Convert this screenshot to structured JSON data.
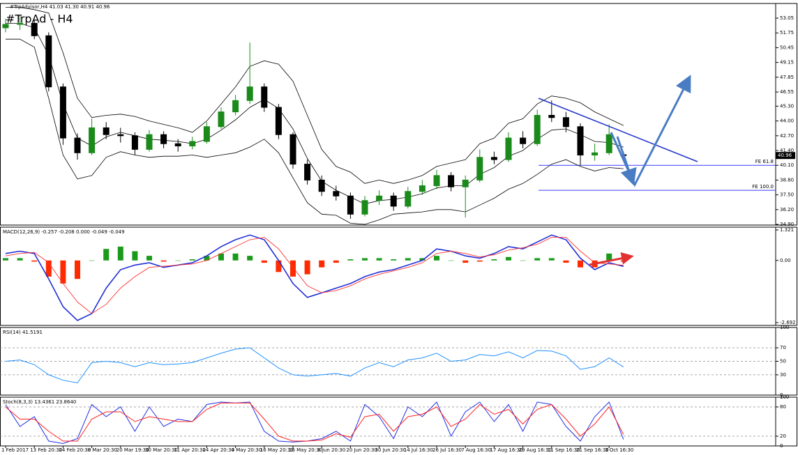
{
  "chart_data": [
    {
      "type": "candlestick",
      "header": "#TrpAdvisor,H4 41.03 41.30 40.91 40.96",
      "title": "#TrpAd - H4",
      "categories": [
        "1 Feb 2017",
        null,
        "13 Feb 20:30",
        null,
        "24 Feb 20:30",
        null,
        "8 Mar 20:30",
        null,
        "20 Mar 19:30",
        null,
        "30 Mar 20:30",
        null,
        "11 Apr 20:30",
        null,
        "24 Apr 20:30",
        null,
        "4 May 20:30",
        null,
        "16 May 20:30",
        null,
        "26 May 20:30",
        null,
        "8 Jun 20:30",
        null,
        "20 Jun 20:30",
        null,
        "30 Jun 20:30",
        null,
        "14 Jul 16:30",
        null,
        "26 Jul 16:30",
        null,
        "7 Aug 16:30",
        null,
        "17 Aug 16:30",
        null,
        "29 Aug 16:30",
        null,
        "11 Sep 16:30",
        null,
        "21 Sep 16:30",
        null,
        "3 Oct 16:30",
        null
      ],
      "open": [
        52.2,
        52.5,
        52.6,
        51.5,
        47.0,
        42.5,
        41.2,
        43.4,
        42.8,
        42.7,
        41.5,
        42.8,
        42.0,
        41.8,
        42.2,
        43.5,
        44.8,
        45.8,
        47.0,
        45.2,
        42.8,
        40.2,
        38.8,
        37.8,
        37.4,
        35.8,
        37.0,
        37.4,
        36.5,
        37.8,
        38.3,
        39.2,
        38.2,
        38.8,
        40.8,
        40.6,
        42.5,
        42.0,
        44.5,
        44.3,
        43.5,
        41.0,
        41.2,
        41.03
      ],
      "high": [
        53.0,
        53.3,
        52.9,
        51.8,
        47.3,
        42.9,
        44.2,
        43.9,
        43.4,
        43.0,
        43.2,
        43.1,
        42.4,
        42.6,
        43.9,
        45.2,
        46.3,
        50.9,
        47.3,
        45.5,
        43.0,
        40.6,
        39.2,
        38.3,
        37.7,
        37.4,
        37.9,
        37.7,
        38.2,
        38.8,
        39.7,
        39.5,
        39.2,
        41.5,
        41.3,
        43.0,
        43.1,
        45.0,
        45.8,
        44.8,
        43.8,
        42.0,
        43.7,
        41.3
      ],
      "low": [
        51.8,
        52.0,
        51.2,
        46.6,
        41.9,
        40.6,
        41.0,
        42.4,
        42.1,
        41.0,
        41.3,
        41.6,
        41.3,
        41.5,
        42.0,
        43.3,
        44.5,
        45.5,
        44.8,
        42.4,
        39.8,
        38.4,
        37.4,
        37.0,
        35.4,
        35.6,
        36.6,
        36.1,
        36.3,
        37.5,
        38.0,
        37.8,
        35.5,
        38.6,
        40.2,
        40.4,
        41.6,
        41.8,
        43.9,
        43.0,
        40.1,
        40.5,
        41.0,
        40.91
      ],
      "close": [
        52.5,
        52.6,
        51.5,
        47.0,
        42.5,
        41.2,
        43.4,
        42.8,
        42.7,
        41.5,
        42.8,
        42.0,
        41.8,
        42.2,
        43.5,
        44.8,
        45.8,
        47.0,
        45.2,
        42.8,
        40.2,
        38.8,
        37.8,
        37.4,
        35.8,
        37.0,
        37.4,
        36.5,
        37.8,
        38.3,
        39.2,
        38.2,
        38.8,
        40.8,
        40.6,
        42.5,
        42.0,
        44.5,
        44.3,
        43.5,
        41.0,
        41.2,
        42.8,
        40.96
      ],
      "up_color": "#1a8a1a",
      "down_color": "#000000",
      "bands": [
        {
          "color": "#000000",
          "values": [
            54.0,
            54.0,
            53.8,
            53.5,
            50.0,
            46.0,
            44.3,
            44.5,
            44.6,
            44.4,
            44.0,
            43.7,
            43.4,
            43.0,
            44.0,
            45.5,
            47.0,
            48.8,
            49.3,
            49.0,
            47.5,
            44.5,
            41.5,
            40.0,
            39.5,
            38.5,
            38.8,
            38.5,
            38.8,
            39.2,
            40.0,
            40.3,
            40.6,
            42.0,
            42.5,
            43.8,
            44.2,
            45.5,
            46.2,
            46.0,
            45.6,
            44.8,
            44.2,
            43.6
          ]
        },
        {
          "color": "#000000",
          "values": [
            52.6,
            52.6,
            52.2,
            49.8,
            45.5,
            42.5,
            41.8,
            42.6,
            43.0,
            42.7,
            42.4,
            42.3,
            42.2,
            42.0,
            42.4,
            43.2,
            44.1,
            45.2,
            45.9,
            45.1,
            43.3,
            40.7,
            38.7,
            37.9,
            37.3,
            36.7,
            37.0,
            37.1,
            37.3,
            37.6,
            38.1,
            38.3,
            38.3,
            39.3,
            39.9,
            40.9,
            41.4,
            42.4,
            43.2,
            43.3,
            42.8,
            42.2,
            42.1,
            41.7
          ]
        },
        {
          "color": "#000000",
          "values": [
            51.2,
            51.2,
            50.5,
            46.0,
            41.0,
            38.9,
            39.2,
            40.8,
            41.3,
            41.0,
            40.8,
            40.9,
            40.9,
            41.0,
            40.8,
            41.0,
            41.2,
            41.7,
            42.4,
            41.2,
            39.0,
            36.8,
            35.8,
            35.7,
            35.0,
            34.9,
            35.3,
            35.8,
            35.9,
            36.0,
            36.2,
            36.2,
            36.0,
            36.6,
            37.2,
            38.0,
            38.5,
            39.3,
            40.2,
            40.6,
            40.0,
            39.6,
            39.9,
            39.8
          ]
        }
      ],
      "ylim": [
        34.84,
        54.34
      ],
      "yticks": [
        53.05,
        51.75,
        50.45,
        49.15,
        47.85,
        46.55,
        {
          "value": 45.3,
          "label": "45.30"
        },
        {
          "value": 44,
          "label": "44.00"
        },
        {
          "value": 42.7,
          "label": "42.70"
        },
        {
          "value": 41.4,
          "label": "41.40"
        },
        {
          "value": 40.1,
          "label": "40.10"
        },
        {
          "value": 38.8,
          "label": "38.80"
        },
        {
          "value": 37.5,
          "label": "37.50"
        },
        {
          "value": 36.2,
          "label": "36.20"
        },
        {
          "value": 34.9,
          "label": "34.90"
        }
      ],
      "levels": [
        {
          "label": "FE 61.8",
          "value": 40.1
        },
        {
          "label": "FE 100.0",
          "value": 37.9
        }
      ],
      "level_color": "#3a3aff"
    },
    {
      "type": "macd",
      "label": "MACD(12,26,9) -0.257 -0.208 0.000 -0.049 -0.049",
      "histogram": {
        "pos_color": "#1a9a1a",
        "neg_color": "#ff2a00",
        "values": [
          0.1,
          0.1,
          -0.05,
          -0.7,
          -1.0,
          -0.8,
          0.0,
          0.5,
          0.6,
          0.4,
          0.2,
          -0.05,
          0.0,
          0.05,
          0.2,
          0.3,
          0.3,
          0.2,
          -0.1,
          -0.5,
          -0.7,
          -0.6,
          -0.3,
          -0.1,
          0.05,
          0.1,
          0.1,
          0.05,
          0.1,
          0.1,
          0.2,
          0.0,
          -0.1,
          -0.05,
          0.05,
          0.15,
          0.0,
          0.1,
          0.1,
          -0.1,
          -0.3,
          -0.3,
          0.3,
          -0.049
        ]
      },
      "series": [
        {
          "color": "#1f2fd6",
          "values": [
            0.3,
            0.4,
            0.3,
            -0.8,
            -2.0,
            -2.6,
            -2.3,
            -1.2,
            -0.4,
            -0.2,
            -0.1,
            -0.3,
            -0.2,
            -0.1,
            0.2,
            0.6,
            0.9,
            1.1,
            0.9,
            0.0,
            -1.0,
            -1.6,
            -1.4,
            -1.2,
            -1.0,
            -0.7,
            -0.5,
            -0.4,
            -0.2,
            0.0,
            0.5,
            0.4,
            0.2,
            0.1,
            0.3,
            0.6,
            0.5,
            0.8,
            1.1,
            0.9,
            0.1,
            -0.4,
            -0.1,
            -0.257
          ]
        },
        {
          "color": "#ff3030",
          "values": [
            0.2,
            0.3,
            0.35,
            -0.1,
            -1.0,
            -1.8,
            -2.3,
            -1.9,
            -1.2,
            -0.7,
            -0.3,
            -0.25,
            -0.2,
            -0.15,
            0.0,
            0.3,
            0.6,
            0.9,
            1.0,
            0.5,
            -0.3,
            -1.1,
            -1.4,
            -1.3,
            -1.1,
            -0.8,
            -0.6,
            -0.45,
            -0.3,
            -0.1,
            0.3,
            0.4,
            0.3,
            0.15,
            0.25,
            0.45,
            0.55,
            0.7,
            1.0,
            1.0,
            0.4,
            -0.1,
            -0.15,
            -0.208
          ]
        }
      ],
      "ylim": [
        -2.813,
        1.442
      ],
      "yticks": [
        1.321,
        {
          "value": 0,
          "label": "0.00"
        },
        -2.692
      ]
    },
    {
      "type": "line",
      "label": "RSI(14) 41.5191",
      "series": [
        {
          "color": "#1e90ff",
          "values": [
            50,
            52,
            45,
            30,
            22,
            18,
            48,
            50,
            48,
            42,
            48,
            45,
            46,
            48,
            55,
            62,
            68,
            70,
            55,
            40,
            30,
            28,
            30,
            32,
            28,
            40,
            48,
            42,
            52,
            55,
            62,
            50,
            52,
            60,
            58,
            64,
            55,
            66,
            65,
            58,
            38,
            42,
            55,
            41.5191
          ]
        }
      ],
      "ylim": [
        0,
        100
      ],
      "yticks": [
        100,
        70,
        50,
        30,
        0
      ],
      "levels": [
        70,
        50,
        30
      ]
    },
    {
      "type": "line",
      "label": "Stoch(8,3,3) 13.4361 23.8640",
      "series": [
        {
          "color": "#2030e0",
          "values": [
            85,
            40,
            60,
            10,
            5,
            15,
            85,
            60,
            80,
            30,
            80,
            40,
            55,
            50,
            85,
            90,
            88,
            90,
            30,
            10,
            8,
            10,
            15,
            30,
            10,
            85,
            60,
            15,
            80,
            60,
            90,
            20,
            70,
            90,
            50,
            85,
            30,
            90,
            85,
            40,
            10,
            60,
            90,
            13.4361
          ]
        },
        {
          "color": "#ff2020",
          "values": [
            80,
            55,
            55,
            30,
            10,
            10,
            55,
            70,
            70,
            50,
            60,
            55,
            50,
            50,
            75,
            88,
            88,
            88,
            55,
            20,
            10,
            10,
            12,
            25,
            18,
            60,
            65,
            30,
            60,
            65,
            80,
            40,
            55,
            85,
            65,
            75,
            45,
            75,
            85,
            55,
            20,
            45,
            80,
            23.864
          ]
        }
      ],
      "ylim": [
        0,
        100
      ],
      "yticks": [
        100,
        80,
        20,
        0
      ],
      "levels": [
        80,
        20
      ]
    }
  ]
}
